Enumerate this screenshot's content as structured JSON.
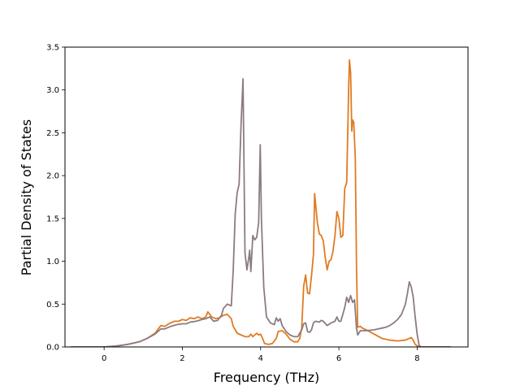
{
  "chart_data": {
    "type": "line",
    "xlabel": "Frequency (THz)",
    "ylabel": "Partial Density of States",
    "xlim": [
      -1.0,
      9.3
    ],
    "ylim": [
      0,
      3.5
    ],
    "xticks": [
      0,
      2,
      4,
      6,
      8
    ],
    "yticks": [
      0.0,
      0.5,
      1.0,
      1.5,
      2.0,
      2.5,
      3.0,
      3.5
    ],
    "xtick_labels": [
      "0",
      "2",
      "4",
      "6",
      "8"
    ],
    "ytick_labels": [
      "0.0",
      "0.5",
      "1.0",
      "1.5",
      "2.0",
      "2.5",
      "3.0",
      "3.5"
    ],
    "grid": false,
    "legend": false,
    "series": [
      {
        "color": "#e07b22",
        "points": [
          [
            -0.85,
            0.0
          ],
          [
            0.0,
            0.0
          ],
          [
            0.3,
            0.01
          ],
          [
            0.6,
            0.03
          ],
          [
            0.9,
            0.06
          ],
          [
            1.1,
            0.1
          ],
          [
            1.3,
            0.16
          ],
          [
            1.45,
            0.25
          ],
          [
            1.55,
            0.24
          ],
          [
            1.65,
            0.27
          ],
          [
            1.8,
            0.3
          ],
          [
            1.9,
            0.3
          ],
          [
            2.0,
            0.32
          ],
          [
            2.1,
            0.31
          ],
          [
            2.2,
            0.34
          ],
          [
            2.3,
            0.33
          ],
          [
            2.4,
            0.35
          ],
          [
            2.5,
            0.33
          ],
          [
            2.6,
            0.35
          ],
          [
            2.65,
            0.41
          ],
          [
            2.75,
            0.35
          ],
          [
            2.85,
            0.33
          ],
          [
            2.95,
            0.34
          ],
          [
            3.05,
            0.37
          ],
          [
            3.15,
            0.38
          ],
          [
            3.25,
            0.33
          ],
          [
            3.3,
            0.24
          ],
          [
            3.4,
            0.16
          ],
          [
            3.5,
            0.14
          ],
          [
            3.6,
            0.12
          ],
          [
            3.7,
            0.12
          ],
          [
            3.75,
            0.15
          ],
          [
            3.8,
            0.12
          ],
          [
            3.9,
            0.16
          ],
          [
            3.95,
            0.14
          ],
          [
            4.0,
            0.15
          ],
          [
            4.05,
            0.1
          ],
          [
            4.1,
            0.04
          ],
          [
            4.2,
            0.03
          ],
          [
            4.3,
            0.04
          ],
          [
            4.4,
            0.1
          ],
          [
            4.45,
            0.18
          ],
          [
            4.55,
            0.19
          ],
          [
            4.65,
            0.15
          ],
          [
            4.75,
            0.09
          ],
          [
            4.85,
            0.06
          ],
          [
            4.95,
            0.06
          ],
          [
            5.0,
            0.1
          ],
          [
            5.05,
            0.22
          ],
          [
            5.1,
            0.71
          ],
          [
            5.15,
            0.84
          ],
          [
            5.2,
            0.63
          ],
          [
            5.25,
            0.62
          ],
          [
            5.3,
            0.83
          ],
          [
            5.35,
            1.08
          ],
          [
            5.38,
            1.79
          ],
          [
            5.45,
            1.45
          ],
          [
            5.5,
            1.32
          ],
          [
            5.55,
            1.3
          ],
          [
            5.6,
            1.24
          ],
          [
            5.65,
            1.05
          ],
          [
            5.7,
            0.9
          ],
          [
            5.75,
            1.0
          ],
          [
            5.8,
            1.02
          ],
          [
            5.85,
            1.12
          ],
          [
            5.9,
            1.3
          ],
          [
            5.95,
            1.58
          ],
          [
            6.0,
            1.5
          ],
          [
            6.05,
            1.28
          ],
          [
            6.1,
            1.3
          ],
          [
            6.15,
            1.85
          ],
          [
            6.2,
            1.92
          ],
          [
            6.25,
            3.02
          ],
          [
            6.27,
            3.35
          ],
          [
            6.3,
            3.2
          ],
          [
            6.33,
            2.52
          ],
          [
            6.35,
            2.65
          ],
          [
            6.38,
            2.62
          ],
          [
            6.42,
            2.2
          ],
          [
            6.45,
            0.95
          ],
          [
            6.48,
            0.23
          ],
          [
            6.55,
            0.24
          ],
          [
            6.6,
            0.22
          ],
          [
            6.7,
            0.2
          ],
          [
            6.9,
            0.15
          ],
          [
            7.1,
            0.1
          ],
          [
            7.3,
            0.08
          ],
          [
            7.5,
            0.07
          ],
          [
            7.7,
            0.08
          ],
          [
            7.8,
            0.1
          ],
          [
            7.85,
            0.11
          ],
          [
            7.9,
            0.08
          ],
          [
            7.95,
            0.03
          ],
          [
            8.05,
            0.0
          ],
          [
            8.85,
            0.0
          ]
        ]
      },
      {
        "color": "#8c7b7f",
        "points": [
          [
            -0.85,
            0.0
          ],
          [
            0.0,
            0.0
          ],
          [
            0.3,
            0.01
          ],
          [
            0.6,
            0.03
          ],
          [
            0.9,
            0.06
          ],
          [
            1.1,
            0.1
          ],
          [
            1.3,
            0.15
          ],
          [
            1.45,
            0.21
          ],
          [
            1.55,
            0.21
          ],
          [
            1.7,
            0.24
          ],
          [
            1.85,
            0.26
          ],
          [
            2.0,
            0.27
          ],
          [
            2.1,
            0.27
          ],
          [
            2.2,
            0.29
          ],
          [
            2.35,
            0.3
          ],
          [
            2.5,
            0.32
          ],
          [
            2.6,
            0.33
          ],
          [
            2.7,
            0.35
          ],
          [
            2.8,
            0.3
          ],
          [
            2.9,
            0.31
          ],
          [
            3.0,
            0.37
          ],
          [
            3.05,
            0.45
          ],
          [
            3.15,
            0.5
          ],
          [
            3.25,
            0.48
          ],
          [
            3.3,
            0.9
          ],
          [
            3.35,
            1.55
          ],
          [
            3.4,
            1.8
          ],
          [
            3.45,
            1.9
          ],
          [
            3.5,
            2.6
          ],
          [
            3.55,
            3.13
          ],
          [
            3.6,
            1.1
          ],
          [
            3.65,
            0.9
          ],
          [
            3.7,
            1.05
          ],
          [
            3.72,
            1.13
          ],
          [
            3.75,
            0.88
          ],
          [
            3.8,
            1.3
          ],
          [
            3.85,
            1.25
          ],
          [
            3.9,
            1.28
          ],
          [
            3.95,
            1.45
          ],
          [
            3.99,
            2.36
          ],
          [
            4.02,
            1.5
          ],
          [
            4.08,
            0.7
          ],
          [
            4.15,
            0.35
          ],
          [
            4.25,
            0.28
          ],
          [
            4.35,
            0.26
          ],
          [
            4.4,
            0.34
          ],
          [
            4.45,
            0.3
          ],
          [
            4.5,
            0.33
          ],
          [
            4.55,
            0.25
          ],
          [
            4.65,
            0.18
          ],
          [
            4.75,
            0.14
          ],
          [
            4.85,
            0.12
          ],
          [
            4.95,
            0.12
          ],
          [
            5.05,
            0.2
          ],
          [
            5.1,
            0.27
          ],
          [
            5.15,
            0.28
          ],
          [
            5.2,
            0.18
          ],
          [
            5.25,
            0.17
          ],
          [
            5.3,
            0.2
          ],
          [
            5.35,
            0.28
          ],
          [
            5.4,
            0.3
          ],
          [
            5.5,
            0.29
          ],
          [
            5.55,
            0.31
          ],
          [
            5.6,
            0.3
          ],
          [
            5.7,
            0.25
          ],
          [
            5.8,
            0.28
          ],
          [
            5.9,
            0.3
          ],
          [
            5.95,
            0.35
          ],
          [
            6.0,
            0.3
          ],
          [
            6.05,
            0.3
          ],
          [
            6.15,
            0.46
          ],
          [
            6.2,
            0.58
          ],
          [
            6.25,
            0.52
          ],
          [
            6.3,
            0.6
          ],
          [
            6.35,
            0.52
          ],
          [
            6.4,
            0.55
          ],
          [
            6.45,
            0.22
          ],
          [
            6.48,
            0.14
          ],
          [
            6.55,
            0.19
          ],
          [
            6.7,
            0.19
          ],
          [
            6.9,
            0.2
          ],
          [
            7.0,
            0.21
          ],
          [
            7.1,
            0.22
          ],
          [
            7.2,
            0.23
          ],
          [
            7.3,
            0.25
          ],
          [
            7.4,
            0.28
          ],
          [
            7.5,
            0.32
          ],
          [
            7.6,
            0.38
          ],
          [
            7.7,
            0.5
          ],
          [
            7.75,
            0.62
          ],
          [
            7.8,
            0.76
          ],
          [
            7.85,
            0.7
          ],
          [
            7.9,
            0.58
          ],
          [
            7.95,
            0.35
          ],
          [
            8.0,
            0.15
          ],
          [
            8.05,
            0.02
          ],
          [
            8.1,
            0.0
          ],
          [
            8.85,
            0.0
          ]
        ]
      }
    ]
  }
}
